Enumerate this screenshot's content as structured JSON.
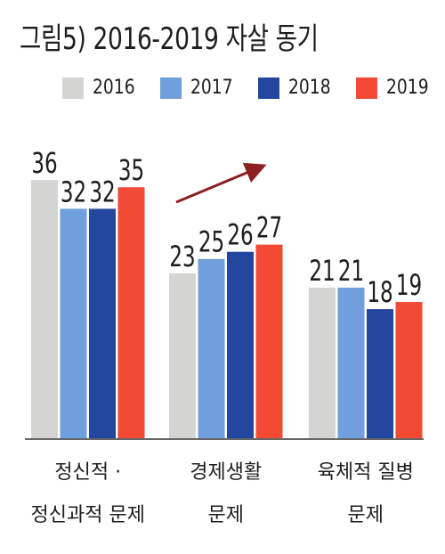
{
  "title": "그림5) 2016-2019 자살 동기",
  "chart_data": {
    "type": "bar",
    "categories": [
      [
        "정신적 ·",
        "정신과적 문제"
      ],
      [
        "경제생활",
        "문제"
      ],
      [
        "육체적 질병",
        "문제"
      ]
    ],
    "series": [
      {
        "name": "2016",
        "color": "#d4d4d2",
        "values": [
          36,
          23,
          21
        ]
      },
      {
        "name": "2017",
        "color": "#6f9fdc",
        "values": [
          32,
          25,
          21
        ]
      },
      {
        "name": "2018",
        "color": "#23479e",
        "values": [
          32,
          26,
          18
        ]
      },
      {
        "name": "2019",
        "color": "#f24a35",
        "values": [
          35,
          27,
          19
        ]
      }
    ],
    "ylim": [
      0,
      40
    ],
    "legend_position": "top",
    "annotation": {
      "type": "trend-arrow",
      "group": "경제생활 문제",
      "color": "#8c1f1f"
    }
  }
}
